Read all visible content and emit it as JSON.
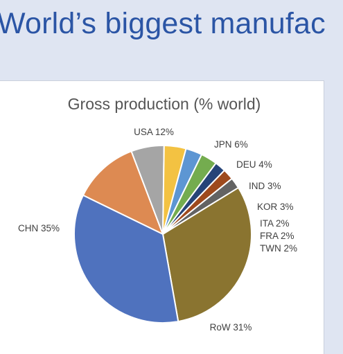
{
  "page": {
    "title": "World’s biggest manufac"
  },
  "chart_data": {
    "type": "pie",
    "title": "Gross production  (% world)",
    "slices": [
      {
        "label": "USA 12%",
        "name": "USA",
        "value": 12,
        "color": "#dd8a52"
      },
      {
        "label": "JPN 6%",
        "name": "JPN",
        "value": 6,
        "color": "#a5a5a5"
      },
      {
        "label": "DEU 4%",
        "name": "DEU",
        "value": 4,
        "color": "#f3c242"
      },
      {
        "label": "IND 3%",
        "name": "IND",
        "value": 3,
        "color": "#5d96d3"
      },
      {
        "label": "KOR 3%",
        "name": "KOR",
        "value": 3,
        "color": "#74ac4f"
      },
      {
        "label": "ITA 2%",
        "name": "ITA",
        "value": 2,
        "color": "#264478"
      },
      {
        "label": "FRA 2%",
        "name": "FRA",
        "value": 2,
        "color": "#9e4a1d"
      },
      {
        "label": "TWN 2%",
        "name": "TWN",
        "value": 2,
        "color": "#636363"
      },
      {
        "label": "RoW 31%",
        "name": "RoW",
        "value": 31,
        "color": "#8a7430"
      },
      {
        "label": "CHN 35%",
        "name": "CHN",
        "value": 35,
        "color": "#4f72be"
      }
    ]
  }
}
